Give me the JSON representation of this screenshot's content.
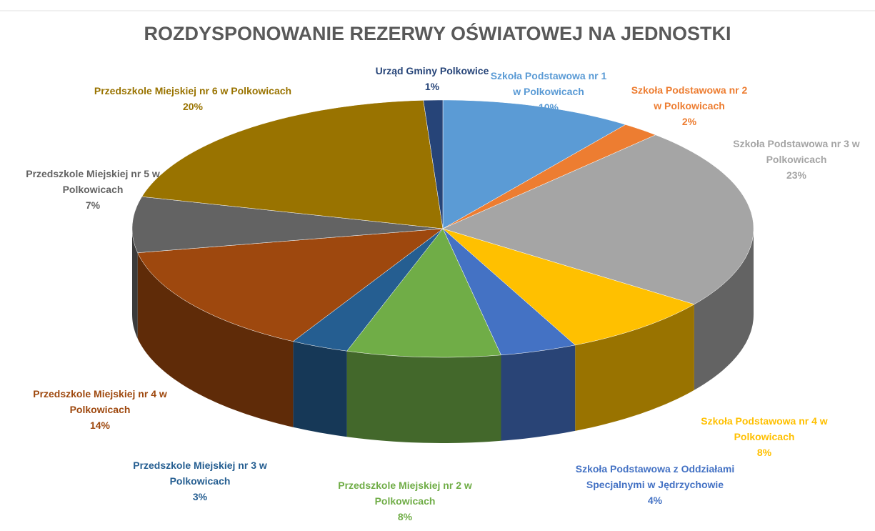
{
  "chart_data": {
    "type": "pie3d",
    "title": "ROZDYSPONOWANIE REZERWY OŚWIATOWEJ NA JEDNOSTKI",
    "categories": [
      "Szkoła Podstawowa nr 1 w Polkowicach",
      "Szkoła Podstawowa nr 2 w Polkowicach",
      "Szkoła Podstawowa nr 3 w Polkowicach",
      "Szkoła Podstawowa nr 4 w Polkowicach",
      "Szkoła Podstawowa z Oddziałami Specjalnymi w Jędrzychowie",
      "Przedszkole Miejskiej nr 2 w Polkowicach",
      "Przedszkole Miejskiej nr 3 w Polkowicach",
      "Przedszkole Miejskiej nr 4 w Polkowicach",
      "Przedszkole Miejskiej nr 5 w Polkowicach",
      "Przedszkole Miejskiej nr 6 w Polkowicach",
      "Urząd Gminy Polkowice"
    ],
    "values": [
      10,
      2,
      23,
      8,
      4,
      8,
      3,
      14,
      7,
      20,
      1
    ],
    "value_labels": [
      "10%",
      "2%",
      "23%",
      "8%",
      "4%",
      "8%",
      "3%",
      "14%",
      "7%",
      "20%",
      "1%"
    ],
    "colors": [
      "#5b9bd5",
      "#ed7d31",
      "#a5a5a5",
      "#ffc000",
      "#4472c4",
      "#70ad47",
      "#255e91",
      "#9e480e",
      "#636363",
      "#997300",
      "#264478"
    ]
  }
}
